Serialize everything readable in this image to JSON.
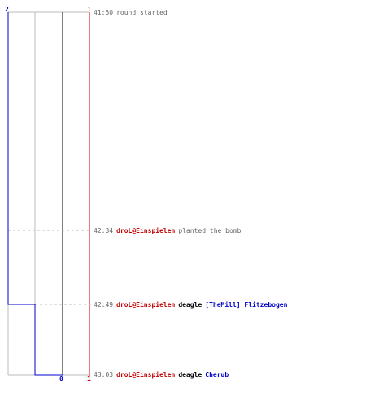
{
  "axis": {
    "left_count": "2",
    "right_count_top": "1",
    "bottom_zero": "0",
    "bottom_right": "1",
    "left_color": "#0000cc",
    "right_color": "#cc0000",
    "mid_color": "#555555"
  },
  "events": [
    {
      "time": "41:50",
      "text": "round started"
    },
    {
      "time": "42:34",
      "killer": "droL@Einspielen",
      "text": "planted the bomb"
    },
    {
      "time": "42:49",
      "killer": "droL@Einspielen",
      "weapon": "deagle",
      "victim": "[TheMill] Flitzebogen"
    },
    {
      "time": "43:03",
      "killer": "droL@Einspielen",
      "weapon": "deagle",
      "victim": "Cherub"
    }
  ]
}
